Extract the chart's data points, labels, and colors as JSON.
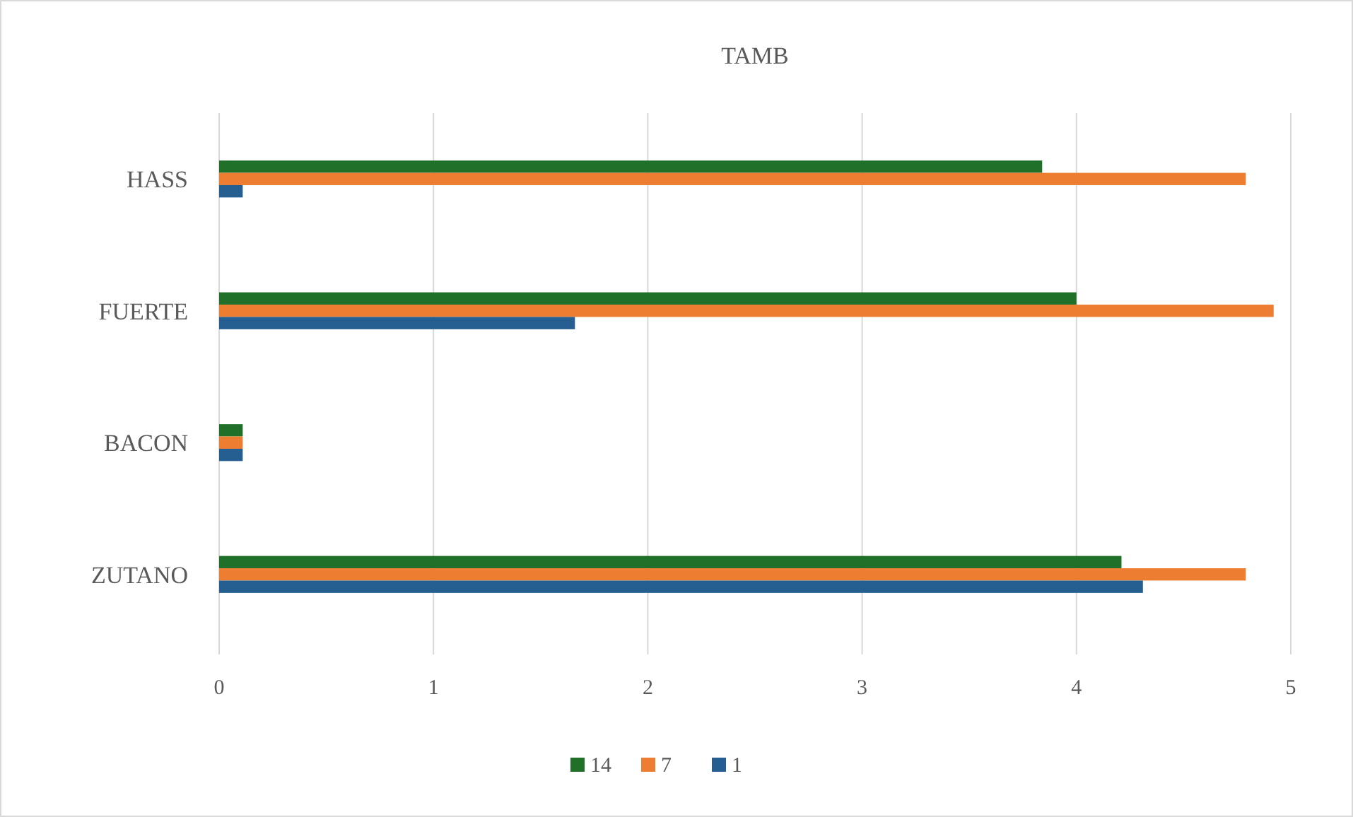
{
  "chart_data": {
    "type": "bar",
    "orientation": "horizontal",
    "title": "TAMB",
    "categories": [
      "HASS",
      "FUERTE",
      "BACON",
      "ZUTANO"
    ],
    "series": [
      {
        "name": "14",
        "color": "#20702a",
        "values": [
          3.84,
          4.0,
          0.11,
          4.21
        ]
      },
      {
        "name": "7",
        "color": "#ed7d31",
        "values": [
          4.79,
          4.92,
          0.11,
          4.79
        ]
      },
      {
        "name": "1",
        "color": "#255e91",
        "values": [
          0.11,
          1.66,
          0.11,
          4.31
        ]
      }
    ],
    "xlim": [
      0,
      5
    ],
    "xticks": [
      0,
      1,
      2,
      3,
      4,
      5
    ],
    "grid": "x",
    "legend": "bottom"
  }
}
